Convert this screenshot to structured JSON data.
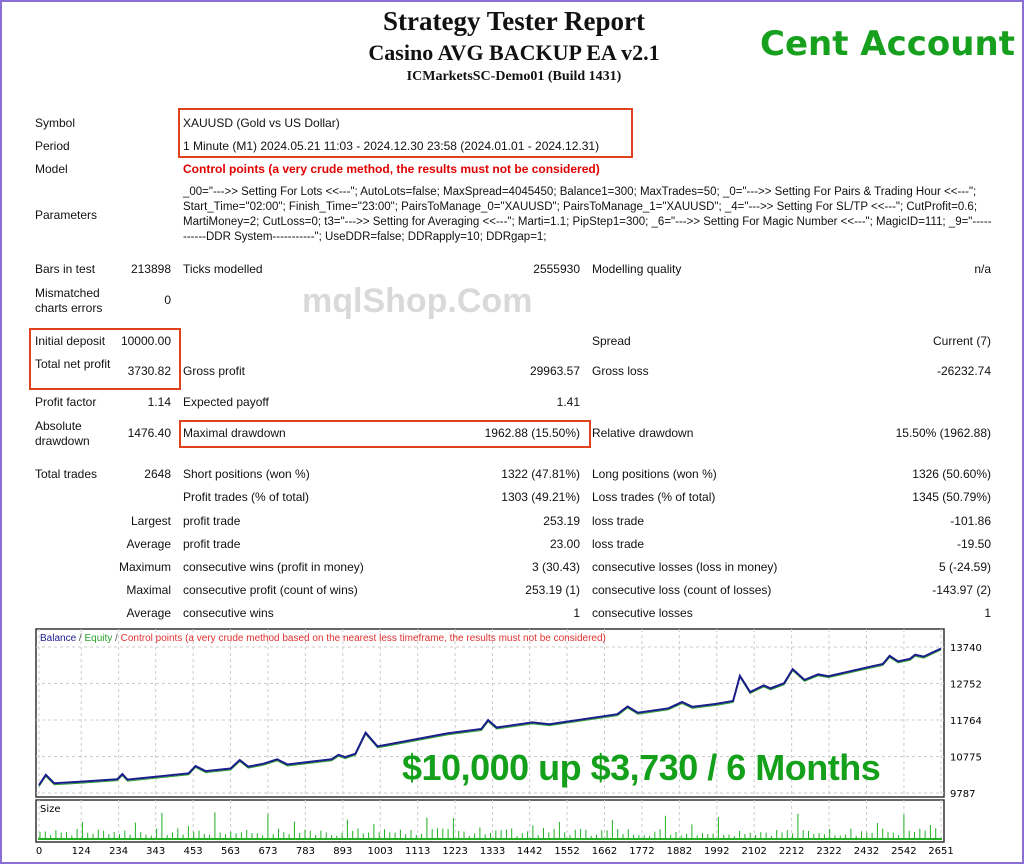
{
  "header": {
    "title": "Strategy Tester Report",
    "subtitle": "Casino AVG BACKUP EA v2.1",
    "server": "ICMarketsSC-Demo01 (Build 1431)",
    "badge": "Cent Account"
  },
  "info": {
    "symbol_label": "Symbol",
    "symbol": "XAUUSD (Gold vs US Dollar)",
    "period_label": "Period",
    "period": "1 Minute (M1) 2024.05.21 11:03 - 2024.12.30 23:58 (2024.01.01 - 2024.12.31)",
    "model_label": "Model",
    "model": "Control points (a very crude method, the results must not be considered)",
    "parameters_label": "Parameters",
    "parameters": "_00=\"--->> Setting For Lots <<---\"; AutoLots=false; MaxSpread=4045450; Balance1=300; MaxTrades=50; _0=\"--->> Setting For Pairs & Trading Hour <<---\"; Start_Time=\"02:00\"; Finish_Time=\"23:00\"; PairsToManage_0=\"XAUUSD\"; PairsToManage_1=\"XAUUSD\"; _4=\"--->> Setting For SL/TP <<---\"; CutProfit=0.6; MartiMoney=2; CutLoss=0; t3=\"--->> Setting for Averaging <<---\"; Marti=1.1; PipStep1=300; _6=\"--->> Setting For Magic Number <<---\"; MagicID=111; _9=\"-----------DDR System-----------\"; UseDDR=false; DDRapply=10; DDRgap=1;"
  },
  "rows": [
    {
      "y": 266,
      "c": [
        [
          "Bars in test",
          "213898"
        ],
        [
          "Ticks modelled",
          "2555930"
        ],
        [
          "Modelling quality",
          "n/a"
        ]
      ]
    },
    {
      "y": 297,
      "c": [
        [
          "Mismatched charts errors",
          "0"
        ],
        [
          "",
          ""
        ],
        [
          "",
          ""
        ]
      ]
    },
    {
      "y": 338,
      "c": [
        [
          "Initial deposit",
          "10000.00"
        ],
        [
          "",
          ""
        ],
        [
          "Spread",
          "Current (7)"
        ]
      ]
    },
    {
      "y": 368,
      "c": [
        [
          "Total net profit",
          "3730.82"
        ],
        [
          "Gross profit",
          "29963.57"
        ],
        [
          "Gross loss",
          "-26232.74"
        ]
      ]
    },
    {
      "y": 399,
      "c": [
        [
          "Profit factor",
          "1.14"
        ],
        [
          "Expected payoff",
          "1.41"
        ],
        [
          "",
          ""
        ]
      ]
    },
    {
      "y": 430,
      "c": [
        [
          "Absolute drawdown",
          "1476.40"
        ],
        [
          "Maximal drawdown",
          "1962.88 (15.50%)"
        ],
        [
          "Relative drawdown",
          "15.50% (1962.88)"
        ]
      ]
    },
    {
      "y": 471,
      "c": [
        [
          "Total trades",
          "2648"
        ],
        [
          "Short positions (won %)",
          "1322 (47.81%)"
        ],
        [
          "Long positions (won %)",
          "1326 (50.60%)"
        ]
      ]
    },
    {
      "y": 494,
      "c": [
        [
          "",
          ""
        ],
        [
          "Profit trades (% of total)",
          "1303 (49.21%)"
        ],
        [
          "Loss trades (% of total)",
          "1345 (50.79%)"
        ]
      ]
    },
    {
      "y": 518,
      "c": [
        [
          "Largest",
          ""
        ],
        [
          "profit trade",
          "253.19"
        ],
        [
          "loss trade",
          "-101.86"
        ]
      ]
    },
    {
      "y": 541,
      "c": [
        [
          "Average",
          ""
        ],
        [
          "profit trade",
          "23.00"
        ],
        [
          "loss trade",
          "-19.50"
        ]
      ]
    },
    {
      "y": 564,
      "c": [
        [
          "Maximum",
          ""
        ],
        [
          "consecutive wins (profit in money)",
          "3 (30.43)"
        ],
        [
          "consecutive losses (loss in money)",
          "5 (-24.59)"
        ]
      ]
    },
    {
      "y": 587,
      "c": [
        [
          "Maximal",
          ""
        ],
        [
          "consecutive profit (count of wins)",
          "253.19 (1)"
        ],
        [
          "consecutive loss (count of losses)",
          "-143.97 (2)"
        ]
      ]
    },
    {
      "y": 610,
      "c": [
        [
          "Average",
          ""
        ],
        [
          "consecutive wins",
          "1"
        ],
        [
          "consecutive losses",
          "1"
        ]
      ]
    }
  ],
  "watermark": "mqlShop.Com",
  "promo": "$10,000 up $3,730 / 6 Months",
  "chart_data": {
    "type": "line",
    "legend": {
      "balance": "Balance",
      "equity": "Equity",
      "note": "Control points (a very crude method based on the nearest less timeframe, the results must not be considered)"
    },
    "colors": {
      "balance": "#1c1c8c",
      "equity": "#2aa02a",
      "note": "#e03030",
      "size": "#22b022"
    },
    "ylim": [
      9787,
      13740
    ],
    "yticks": [
      "13740",
      "12752",
      "11764",
      "10775",
      "9787"
    ],
    "xticks": [
      "0",
      "124",
      "234",
      "343",
      "453",
      "563",
      "673",
      "783",
      "893",
      "1003",
      "1113",
      "1223",
      "1333",
      "1442",
      "1552",
      "1662",
      "1772",
      "1882",
      "1992",
      "2102",
      "2212",
      "2322",
      "2432",
      "2542",
      "2651"
    ],
    "size_label": "Size",
    "balance": [
      [
        0,
        10000
      ],
      [
        20,
        10280
      ],
      [
        45,
        10050
      ],
      [
        120,
        10090
      ],
      [
        230,
        10160
      ],
      [
        245,
        10300
      ],
      [
        260,
        10150
      ],
      [
        440,
        10320
      ],
      [
        460,
        10520
      ],
      [
        490,
        10380
      ],
      [
        563,
        10450
      ],
      [
        590,
        10680
      ],
      [
        615,
        10500
      ],
      [
        660,
        10580
      ],
      [
        700,
        10700
      ],
      [
        730,
        10560
      ],
      [
        860,
        10700
      ],
      [
        880,
        10820
      ],
      [
        900,
        10760
      ],
      [
        930,
        10850
      ],
      [
        960,
        11420
      ],
      [
        995,
        11050
      ],
      [
        1200,
        11400
      ],
      [
        1300,
        11520
      ],
      [
        1320,
        11760
      ],
      [
        1345,
        11560
      ],
      [
        1450,
        11700
      ],
      [
        1500,
        11650
      ],
      [
        1700,
        11920
      ],
      [
        1730,
        12130
      ],
      [
        1760,
        11960
      ],
      [
        1850,
        12080
      ],
      [
        1890,
        12250
      ],
      [
        1920,
        12120
      ],
      [
        1990,
        12200
      ],
      [
        2040,
        12280
      ],
      [
        2060,
        12960
      ],
      [
        2090,
        12520
      ],
      [
        2130,
        12700
      ],
      [
        2150,
        12620
      ],
      [
        2190,
        12760
      ],
      [
        2215,
        13140
      ],
      [
        2250,
        12850
      ],
      [
        2290,
        13000
      ],
      [
        2320,
        12950
      ],
      [
        2440,
        13200
      ],
      [
        2480,
        13280
      ],
      [
        2500,
        13500
      ],
      [
        2525,
        13350
      ],
      [
        2560,
        13420
      ],
      [
        2575,
        13530
      ],
      [
        2600,
        13480
      ],
      [
        2651,
        13700
      ]
    ]
  }
}
